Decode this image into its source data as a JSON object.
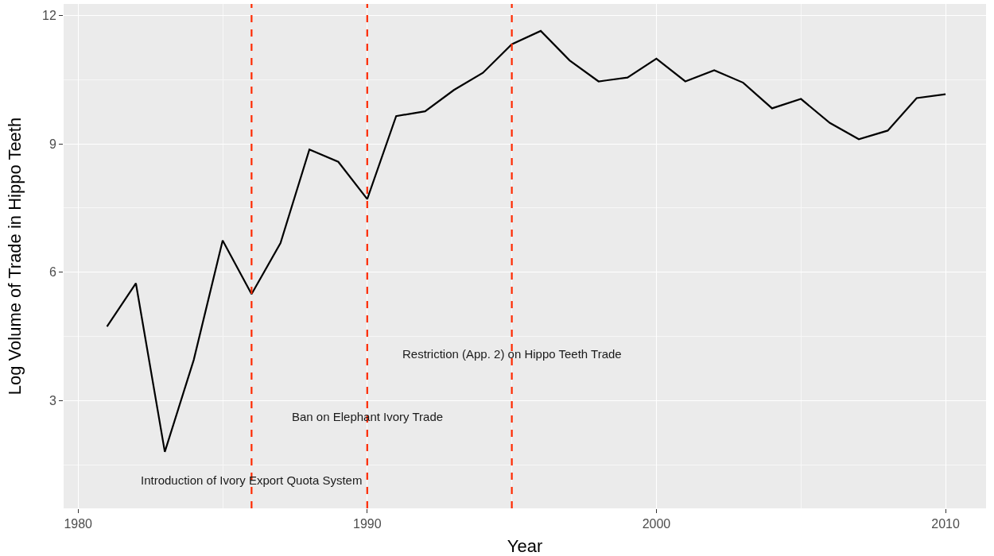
{
  "chart_data": {
    "type": "line",
    "xlabel": "Year",
    "ylabel": "Log Volume of Trade in Hippo Teeth",
    "x": [
      1981,
      1982,
      1983,
      1984,
      1985,
      1986,
      1987,
      1988,
      1989,
      1990,
      1991,
      1992,
      1993,
      1994,
      1995,
      1996,
      1997,
      1998,
      1999,
      2000,
      2001,
      2002,
      2003,
      2004,
      2005,
      2006,
      2007,
      2008,
      2009,
      2010
    ],
    "series": [
      {
        "color": "#000000",
        "values": [
          4.73,
          5.74,
          1.8,
          3.95,
          6.74,
          5.49,
          6.68,
          8.87,
          8.58,
          7.71,
          9.65,
          9.76,
          10.26,
          10.66,
          11.33,
          11.64,
          10.95,
          10.46,
          10.55,
          10.99,
          10.46,
          10.72,
          10.43,
          9.83,
          10.05,
          9.49,
          9.11,
          9.31,
          10.07,
          10.16
        ]
      }
    ],
    "xlim": [
      1979.5,
      2011.4
    ],
    "ylim": [
      0.48,
      12.27
    ],
    "xticks": [
      1980,
      1990,
      2000,
      2010
    ],
    "yticks": [
      3,
      6,
      9,
      12
    ],
    "grid": true,
    "marker": "none",
    "line_style": "solid",
    "ref_lines": [
      {
        "axis": "x",
        "value": 1986,
        "label": "Introduction of Ivory Export Quota System",
        "color": "#ff2a00",
        "line_style": "dashed"
      },
      {
        "axis": "x",
        "value": 1990,
        "label": "Ban on Elephant Ivory Trade",
        "color": "#ff2a00",
        "line_style": "dashed"
      },
      {
        "axis": "x",
        "value": 1995,
        "label": "Restriction (App. 2) on Hippo Teeth Trade",
        "color": "#ff2a00",
        "line_style": "dashed"
      }
    ]
  }
}
